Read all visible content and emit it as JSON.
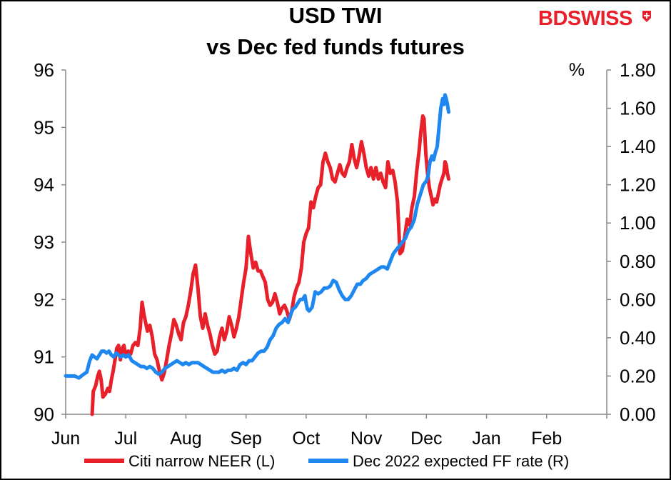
{
  "chart_data": {
    "type": "line",
    "title": "USD TWI",
    "subtitle": "vs Dec fed funds futures",
    "brand": "BDSWISS",
    "brand_color": "#e8202a",
    "x_tick_labels": [
      "Jun",
      "Jul",
      "Aug",
      "Sep",
      "Oct",
      "Nov",
      "Dec",
      "Jan",
      "Feb"
    ],
    "left_axis": {
      "ylim": [
        90,
        96
      ],
      "ticks": [
        "90",
        "91",
        "92",
        "93",
        "94",
        "95",
        "96"
      ]
    },
    "right_axis": {
      "unit_label": "%",
      "ylim": [
        0,
        1.8
      ],
      "ticks": [
        "0.00",
        "0.20",
        "0.40",
        "0.60",
        "0.80",
        "1.00",
        "1.20",
        "1.40",
        "1.60",
        "1.80"
      ]
    },
    "grid": false,
    "legend_position": "bottom",
    "series": [
      {
        "name": "Citi narrow NEER (L)",
        "axis": "left",
        "color": "#e8202a",
        "points": [
          [
            0.44,
            90.0
          ],
          [
            0.46,
            90.4
          ],
          [
            0.5,
            90.5
          ],
          [
            0.53,
            90.65
          ],
          [
            0.56,
            90.75
          ],
          [
            0.59,
            90.6
          ],
          [
            0.62,
            90.3
          ],
          [
            0.66,
            90.35
          ],
          [
            0.7,
            90.45
          ],
          [
            0.73,
            90.4
          ],
          [
            0.76,
            90.6
          ],
          [
            0.79,
            90.75
          ],
          [
            0.82,
            90.95
          ],
          [
            0.85,
            91.15
          ],
          [
            0.88,
            91.2
          ],
          [
            0.91,
            90.95
          ],
          [
            0.94,
            91.15
          ],
          [
            0.97,
            91.2
          ],
          [
            1.0,
            91.0
          ],
          [
            1.04,
            91.1
          ],
          [
            1.08,
            91.05
          ],
          [
            1.12,
            91.2
          ],
          [
            1.16,
            91.25
          ],
          [
            1.2,
            91.2
          ],
          [
            1.24,
            91.5
          ],
          [
            1.27,
            91.95
          ],
          [
            1.3,
            91.75
          ],
          [
            1.33,
            91.6
          ],
          [
            1.36,
            91.45
          ],
          [
            1.4,
            91.55
          ],
          [
            1.44,
            91.35
          ],
          [
            1.48,
            91.05
          ],
          [
            1.52,
            90.95
          ],
          [
            1.56,
            90.75
          ],
          [
            1.6,
            90.6
          ],
          [
            1.64,
            90.72
          ],
          [
            1.68,
            90.95
          ],
          [
            1.72,
            91.2
          ],
          [
            1.76,
            91.4
          ],
          [
            1.8,
            91.65
          ],
          [
            1.84,
            91.55
          ],
          [
            1.88,
            91.4
          ],
          [
            1.92,
            91.3
          ],
          [
            1.96,
            91.6
          ],
          [
            2.0,
            91.7
          ],
          [
            2.04,
            91.9
          ],
          [
            2.08,
            92.15
          ],
          [
            2.12,
            92.45
          ],
          [
            2.16,
            92.6
          ],
          [
            2.2,
            92.2
          ],
          [
            2.24,
            91.7
          ],
          [
            2.28,
            91.5
          ],
          [
            2.32,
            91.75
          ],
          [
            2.36,
            91.55
          ],
          [
            2.4,
            91.4
          ],
          [
            2.44,
            91.2
          ],
          [
            2.48,
            91.05
          ],
          [
            2.52,
            91.1
          ],
          [
            2.56,
            91.35
          ],
          [
            2.6,
            91.5
          ],
          [
            2.64,
            91.3
          ],
          [
            2.68,
            91.45
          ],
          [
            2.72,
            91.7
          ],
          [
            2.76,
            91.55
          ],
          [
            2.8,
            91.35
          ],
          [
            2.84,
            91.5
          ],
          [
            2.88,
            91.7
          ],
          [
            2.92,
            92.0
          ],
          [
            2.96,
            92.3
          ],
          [
            3.0,
            92.55
          ],
          [
            3.04,
            93.1
          ],
          [
            3.08,
            92.8
          ],
          [
            3.12,
            92.55
          ],
          [
            3.16,
            92.65
          ],
          [
            3.2,
            92.5
          ],
          [
            3.24,
            92.5
          ],
          [
            3.28,
            92.4
          ],
          [
            3.32,
            92.3
          ],
          [
            3.36,
            92.0
          ],
          [
            3.4,
            91.9
          ],
          [
            3.44,
            91.95
          ],
          [
            3.48,
            92.1
          ],
          [
            3.52,
            91.95
          ],
          [
            3.56,
            91.75
          ],
          [
            3.6,
            91.85
          ],
          [
            3.64,
            91.9
          ],
          [
            3.68,
            91.8
          ],
          [
            3.72,
            91.65
          ],
          [
            3.76,
            91.8
          ],
          [
            3.8,
            92.05
          ],
          [
            3.84,
            92.2
          ],
          [
            3.88,
            92.3
          ],
          [
            3.92,
            92.55
          ],
          [
            3.96,
            93.0
          ],
          [
            4.0,
            93.15
          ],
          [
            4.04,
            93.25
          ],
          [
            4.08,
            93.7
          ],
          [
            4.12,
            93.6
          ],
          [
            4.16,
            93.8
          ],
          [
            4.2,
            93.95
          ],
          [
            4.24,
            94.0
          ],
          [
            4.28,
            94.4
          ],
          [
            4.32,
            94.55
          ],
          [
            4.36,
            94.4
          ],
          [
            4.4,
            94.3
          ],
          [
            4.44,
            94.1
          ],
          [
            4.48,
            94.05
          ],
          [
            4.52,
            94.2
          ],
          [
            4.56,
            94.35
          ],
          [
            4.6,
            94.2
          ],
          [
            4.64,
            94.15
          ],
          [
            4.68,
            94.3
          ],
          [
            4.72,
            94.4
          ],
          [
            4.76,
            94.7
          ],
          [
            4.8,
            94.45
          ],
          [
            4.84,
            94.3
          ],
          [
            4.88,
            94.5
          ],
          [
            4.92,
            94.75
          ],
          [
            4.96,
            94.55
          ],
          [
            5.0,
            94.3
          ],
          [
            5.04,
            94.15
          ],
          [
            5.08,
            94.3
          ],
          [
            5.12,
            94.1
          ],
          [
            5.16,
            94.3
          ],
          [
            5.2,
            94.1
          ],
          [
            5.24,
            94.2
          ],
          [
            5.28,
            94.05
          ],
          [
            5.32,
            93.95
          ],
          [
            5.36,
            94.4
          ],
          [
            5.4,
            94.2
          ],
          [
            5.44,
            94.25
          ],
          [
            5.48,
            94.05
          ],
          [
            5.52,
            93.7
          ],
          [
            5.56,
            92.8
          ],
          [
            5.6,
            92.85
          ],
          [
            5.64,
            93.1
          ],
          [
            5.68,
            93.4
          ],
          [
            5.72,
            93.3
          ],
          [
            5.76,
            93.6
          ],
          [
            5.8,
            93.8
          ],
          [
            5.84,
            94.25
          ],
          [
            5.88,
            94.6
          ],
          [
            5.91,
            94.95
          ],
          [
            5.94,
            95.2
          ],
          [
            5.96,
            95.15
          ],
          [
            5.99,
            94.55
          ],
          [
            6.02,
            94.2
          ],
          [
            6.05,
            93.95
          ],
          [
            6.08,
            93.8
          ],
          [
            6.11,
            93.65
          ],
          [
            6.14,
            93.75
          ],
          [
            6.17,
            93.7
          ],
          [
            6.2,
            93.85
          ],
          [
            6.23,
            94.0
          ],
          [
            6.26,
            94.1
          ],
          [
            6.29,
            94.2
          ],
          [
            6.31,
            94.4
          ],
          [
            6.33,
            94.35
          ],
          [
            6.35,
            94.2
          ],
          [
            6.37,
            94.1
          ]
        ]
      },
      {
        "name": "Dec 2022 expected FF rate (R)",
        "axis": "right",
        "color": "#1e87f0",
        "points": [
          [
            0.0,
            0.2
          ],
          [
            0.08,
            0.2
          ],
          [
            0.15,
            0.2
          ],
          [
            0.22,
            0.19
          ],
          [
            0.3,
            0.21
          ],
          [
            0.35,
            0.22
          ],
          [
            0.4,
            0.28
          ],
          [
            0.44,
            0.31
          ],
          [
            0.48,
            0.3
          ],
          [
            0.52,
            0.29
          ],
          [
            0.56,
            0.31
          ],
          [
            0.6,
            0.33
          ],
          [
            0.64,
            0.33
          ],
          [
            0.68,
            0.32
          ],
          [
            0.72,
            0.33
          ],
          [
            0.76,
            0.31
          ],
          [
            0.8,
            0.3
          ],
          [
            0.84,
            0.32
          ],
          [
            0.88,
            0.31
          ],
          [
            0.92,
            0.3
          ],
          [
            0.96,
            0.31
          ],
          [
            1.0,
            0.3
          ],
          [
            1.05,
            0.31
          ],
          [
            1.1,
            0.28
          ],
          [
            1.15,
            0.27
          ],
          [
            1.2,
            0.26
          ],
          [
            1.25,
            0.25
          ],
          [
            1.3,
            0.25
          ],
          [
            1.35,
            0.24
          ],
          [
            1.4,
            0.25
          ],
          [
            1.45,
            0.24
          ],
          [
            1.5,
            0.22
          ],
          [
            1.55,
            0.21
          ],
          [
            1.6,
            0.22
          ],
          [
            1.65,
            0.24
          ],
          [
            1.7,
            0.25
          ],
          [
            1.75,
            0.26
          ],
          [
            1.8,
            0.27
          ],
          [
            1.85,
            0.28
          ],
          [
            1.9,
            0.27
          ],
          [
            1.95,
            0.26
          ],
          [
            2.0,
            0.27
          ],
          [
            2.05,
            0.26
          ],
          [
            2.1,
            0.27
          ],
          [
            2.15,
            0.27
          ],
          [
            2.2,
            0.27
          ],
          [
            2.25,
            0.26
          ],
          [
            2.3,
            0.25
          ],
          [
            2.35,
            0.24
          ],
          [
            2.4,
            0.23
          ],
          [
            2.45,
            0.22
          ],
          [
            2.5,
            0.22
          ],
          [
            2.55,
            0.22
          ],
          [
            2.6,
            0.23
          ],
          [
            2.65,
            0.22
          ],
          [
            2.7,
            0.23
          ],
          [
            2.75,
            0.23
          ],
          [
            2.8,
            0.24
          ],
          [
            2.85,
            0.23
          ],
          [
            2.9,
            0.26
          ],
          [
            2.95,
            0.27
          ],
          [
            3.0,
            0.26
          ],
          [
            3.05,
            0.28
          ],
          [
            3.1,
            0.28
          ],
          [
            3.15,
            0.3
          ],
          [
            3.2,
            0.32
          ],
          [
            3.25,
            0.33
          ],
          [
            3.3,
            0.33
          ],
          [
            3.35,
            0.35
          ],
          [
            3.4,
            0.39
          ],
          [
            3.45,
            0.41
          ],
          [
            3.5,
            0.45
          ],
          [
            3.55,
            0.47
          ],
          [
            3.6,
            0.48
          ],
          [
            3.65,
            0.5
          ],
          [
            3.7,
            0.48
          ],
          [
            3.74,
            0.52
          ],
          [
            3.78,
            0.55
          ],
          [
            3.82,
            0.56
          ],
          [
            3.86,
            0.58
          ],
          [
            3.9,
            0.6
          ],
          [
            3.94,
            0.6
          ],
          [
            3.98,
            0.62
          ],
          [
            4.0,
            0.58
          ],
          [
            4.02,
            0.55
          ],
          [
            4.05,
            0.54
          ],
          [
            4.1,
            0.56
          ],
          [
            4.15,
            0.64
          ],
          [
            4.2,
            0.63
          ],
          [
            4.25,
            0.64
          ],
          [
            4.3,
            0.66
          ],
          [
            4.35,
            0.66
          ],
          [
            4.4,
            0.67
          ],
          [
            4.45,
            0.7
          ],
          [
            4.5,
            0.69
          ],
          [
            4.55,
            0.65
          ],
          [
            4.6,
            0.62
          ],
          [
            4.65,
            0.6
          ],
          [
            4.7,
            0.6
          ],
          [
            4.75,
            0.62
          ],
          [
            4.8,
            0.65
          ],
          [
            4.85,
            0.68
          ],
          [
            4.9,
            0.68
          ],
          [
            4.95,
            0.7
          ],
          [
            5.0,
            0.71
          ],
          [
            5.05,
            0.73
          ],
          [
            5.1,
            0.74
          ],
          [
            5.15,
            0.75
          ],
          [
            5.2,
            0.76
          ],
          [
            5.25,
            0.77
          ],
          [
            5.3,
            0.77
          ],
          [
            5.35,
            0.76
          ],
          [
            5.4,
            0.8
          ],
          [
            5.45,
            0.84
          ],
          [
            5.5,
            0.86
          ],
          [
            5.55,
            0.88
          ],
          [
            5.6,
            0.9
          ],
          [
            5.65,
            0.92
          ],
          [
            5.7,
            0.96
          ],
          [
            5.75,
            0.98
          ],
          [
            5.8,
            1.02
          ],
          [
            5.85,
            1.1
          ],
          [
            5.9,
            1.15
          ],
          [
            5.95,
            1.2
          ],
          [
            6.0,
            1.22
          ],
          [
            6.03,
            1.25
          ],
          [
            6.06,
            1.32
          ],
          [
            6.09,
            1.35
          ],
          [
            6.12,
            1.33
          ],
          [
            6.15,
            1.37
          ],
          [
            6.18,
            1.4
          ],
          [
            6.21,
            1.5
          ],
          [
            6.24,
            1.6
          ],
          [
            6.27,
            1.65
          ],
          [
            6.29,
            1.62
          ],
          [
            6.31,
            1.67
          ],
          [
            6.33,
            1.65
          ],
          [
            6.35,
            1.62
          ],
          [
            6.37,
            1.58
          ]
        ]
      }
    ]
  }
}
